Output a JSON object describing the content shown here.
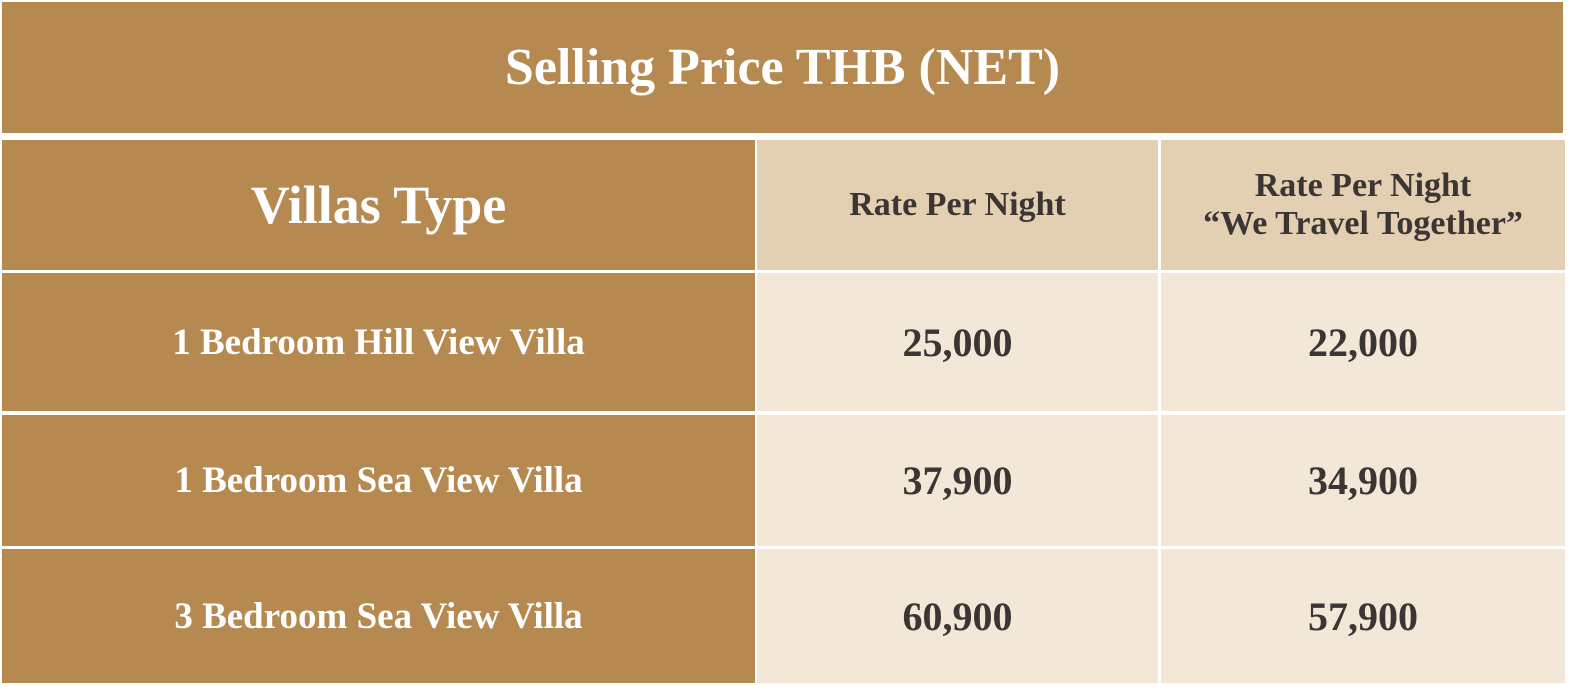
{
  "header": {
    "title": "Selling Price THB (NET)"
  },
  "table": {
    "columns": [
      [
        "Villas Type"
      ],
      [
        "Rate Per Night"
      ],
      [
        "Rate Per Night",
        "“We Travel Together”"
      ]
    ],
    "rows": [
      [
        "1 Bedroom Hill View Villa",
        "25,000",
        "22,000"
      ],
      [
        "1 Bedroom Sea View Villa",
        "37,900",
        "34,900"
      ],
      [
        "3 Bedroom Sea View Villa",
        "60,900",
        "57,900"
      ]
    ]
  }
}
